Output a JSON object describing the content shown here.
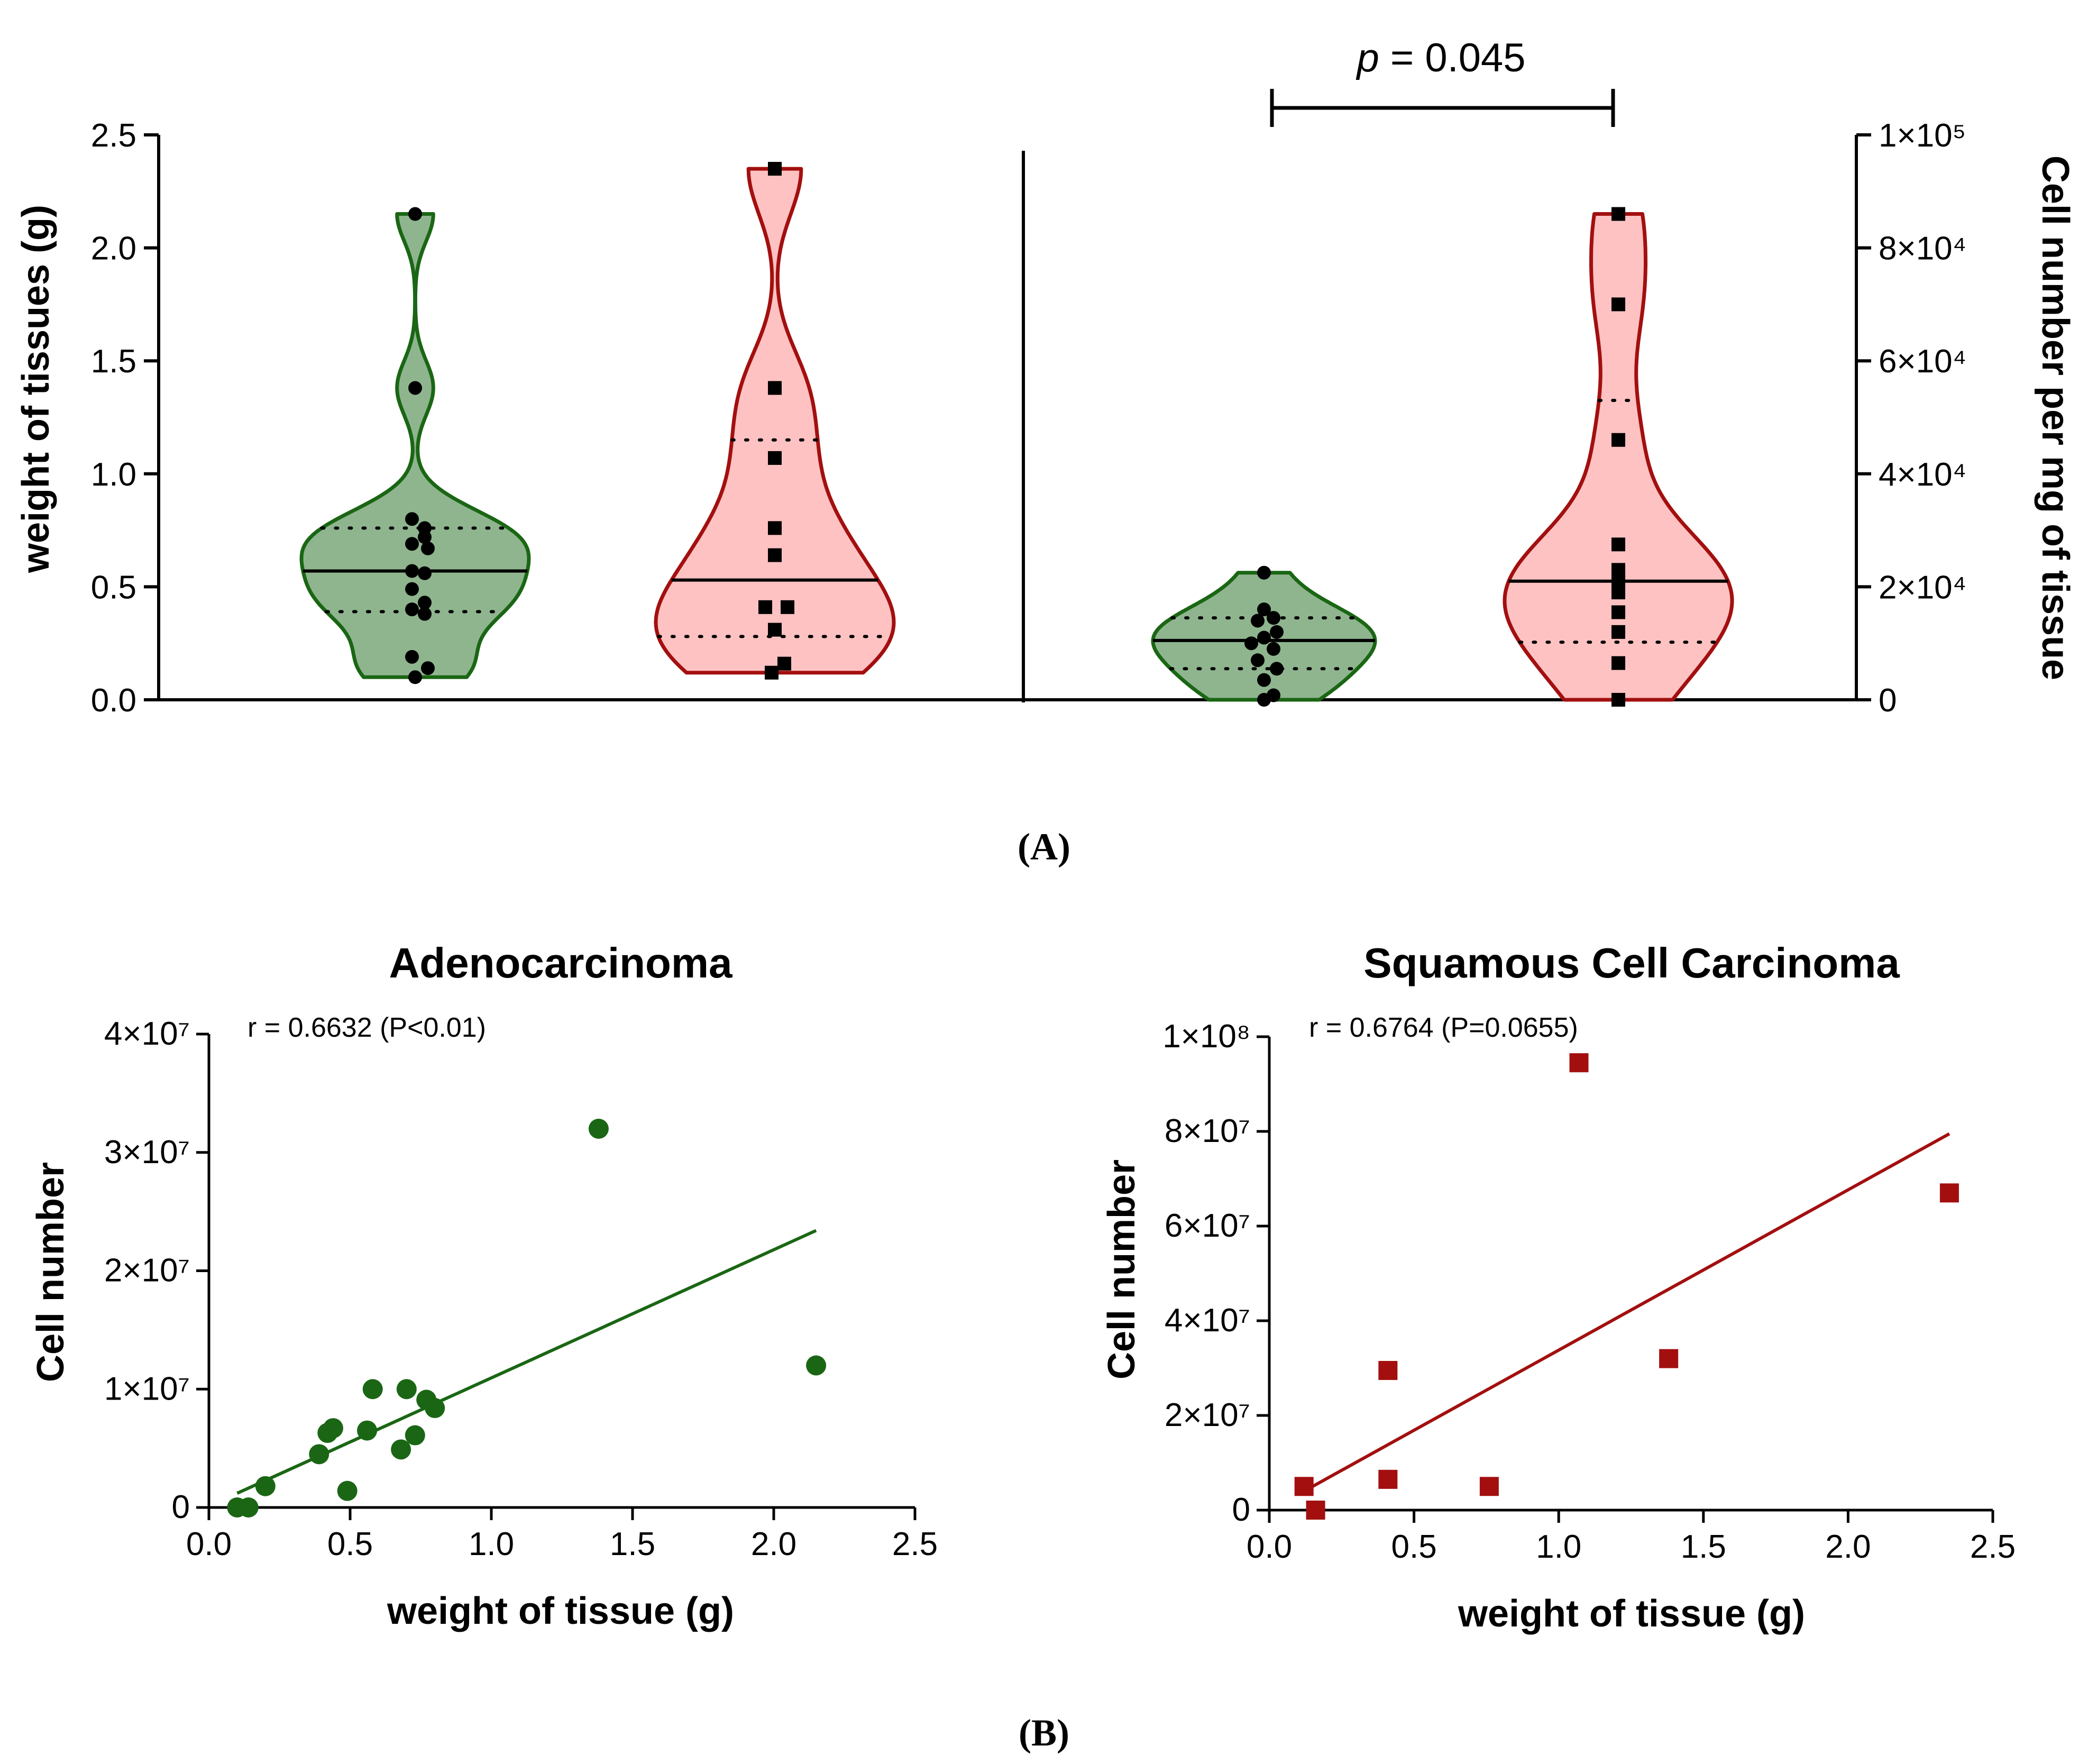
{
  "panel_labels": {
    "a": "(A)",
    "b": "(B)"
  },
  "chart_data": [
    {
      "type": "violin",
      "panel": "A-left",
      "ylabel": "weight of tissues (g)",
      "ylim": [
        0,
        2.5
      ],
      "yticks": [
        0.0,
        0.5,
        1.0,
        1.5,
        2.0,
        2.5
      ],
      "ytick_labels": [
        "0.0",
        "0.5",
        "1.0",
        "1.5",
        "2.0",
        "2.5"
      ],
      "colors": {
        "green_fill": "#8fb58f",
        "green_line": "#1a6614",
        "red_fill": "#ffc2c2",
        "red_line": "#a30f0f"
      },
      "series": [
        {
          "name": "Adenocarcinoma",
          "color": "green",
          "median": 0.57,
          "q1": 0.39,
          "q3": 0.76,
          "values": [
            0.1,
            0.14,
            0.19,
            0.38,
            0.4,
            0.43,
            0.49,
            0.56,
            0.57,
            0.67,
            0.69,
            0.72,
            0.76,
            0.8,
            1.38,
            2.15
          ],
          "extra_x": [
            0,
            0.4,
            -0.1,
            0.3,
            -0.1,
            0.3,
            -0.1,
            0.3,
            -0.1,
            0.4,
            -0.1,
            0.3,
            0.3,
            -0.1,
            0,
            0
          ]
        },
        {
          "name": "Squamous Cell Carcinoma",
          "color": "red",
          "median": 0.53,
          "q1": 0.28,
          "q3": 1.15,
          "values": [
            0.12,
            0.16,
            0.31,
            0.41,
            0.41,
            0.64,
            0.76,
            1.07,
            1.38,
            2.35
          ],
          "extra_x": [
            -0.1,
            0.3,
            0,
            -0.3,
            0.4,
            0,
            0,
            0,
            0,
            0
          ]
        }
      ]
    },
    {
      "type": "violin",
      "panel": "A-right",
      "ylabel": "Cell number per mg of tissue",
      "ylim": [
        0,
        100000
      ],
      "ytick_labels": [
        "0",
        "2×10⁴",
        "4×10⁴",
        "6×10⁴",
        "8×10⁴",
        "1×10⁵"
      ],
      "annotation": {
        "text_p": "p",
        "text_rest": " = 0.045"
      },
      "series": [
        {
          "name": "Adenocarcinoma",
          "color": "green",
          "median": 10500,
          "q1": 5500,
          "q3": 14500,
          "values": [
            0,
            800,
            3500,
            5500,
            7000,
            9000,
            10000,
            11000,
            12000,
            14000,
            14500,
            16000,
            22500
          ],
          "extra_x": [
            0,
            0.3,
            0,
            0.4,
            -0.2,
            0.3,
            -0.4,
            0,
            0.4,
            -0.2,
            0.3,
            0,
            0
          ]
        },
        {
          "name": "Squamous Cell Carcinoma",
          "color": "red",
          "median": 21000,
          "q1": 10200,
          "q3": 53000,
          "values": [
            0,
            6500,
            12000,
            15500,
            19000,
            21000,
            23000,
            27500,
            46000,
            70000,
            86000
          ],
          "extra_x": [
            0,
            0,
            0,
            0,
            0,
            0,
            0,
            0,
            0,
            0,
            0
          ]
        }
      ]
    },
    {
      "type": "scatter",
      "panel": "B-left",
      "title": "Adenocarcinoma",
      "annotation": "r = 0.6632 (P<0.01)",
      "xlabel": "weight of tissue (g)",
      "ylabel": "Cell number",
      "xlim": [
        0,
        2.5
      ],
      "ylim": [
        0,
        40000000
      ],
      "xtick_labels": [
        "0.0",
        "0.5",
        "1.0",
        "1.5",
        "2.0",
        "2.5"
      ],
      "ytick_labels": [
        "0",
        "1×10⁷",
        "2×10⁷",
        "3×10⁷",
        "4×10⁷"
      ],
      "color": "#1a6614",
      "marker": "circle",
      "x": [
        0.1,
        0.14,
        0.2,
        0.39,
        0.42,
        0.44,
        0.49,
        0.56,
        0.58,
        0.68,
        0.7,
        0.73,
        0.77,
        0.8,
        1.38,
        2.15
      ],
      "y": [
        0,
        0,
        1800000,
        4500000,
        6300000,
        6700000,
        1400000,
        6500000,
        10000000,
        4900000,
        10000000,
        6100000,
        9100000,
        8400000,
        32000000,
        12000000
      ],
      "fit": {
        "x": [
          0.1,
          2.15
        ],
        "y": [
          1200000,
          23400000
        ]
      }
    },
    {
      "type": "scatter",
      "panel": "B-right",
      "title": "Squamous Cell Carcinoma",
      "annotation": "r = 0.6764 (P=0.0655)",
      "xlabel": "weight of tissue (g)",
      "ylabel": "Cell number",
      "xlim": [
        0,
        2.5
      ],
      "ylim": [
        0,
        100000000
      ],
      "xtick_labels": [
        "0.0",
        "0.5",
        "1.0",
        "1.5",
        "2.0",
        "2.5"
      ],
      "ytick_labels": [
        "0",
        "2×10⁷",
        "4×10⁷",
        "6×10⁷",
        "8×10⁷",
        "1×10⁸"
      ],
      "color": "#a30f0f",
      "marker": "square",
      "x": [
        0.12,
        0.16,
        0.41,
        0.41,
        0.76,
        1.07,
        1.38,
        2.35
      ],
      "y": [
        5000000,
        0,
        6500000,
        29500000,
        5000000,
        94500000,
        32000000,
        67000000
      ],
      "fit": {
        "x": [
          0.12,
          2.35
        ],
        "y": [
          4000000,
          79500000
        ]
      }
    }
  ]
}
